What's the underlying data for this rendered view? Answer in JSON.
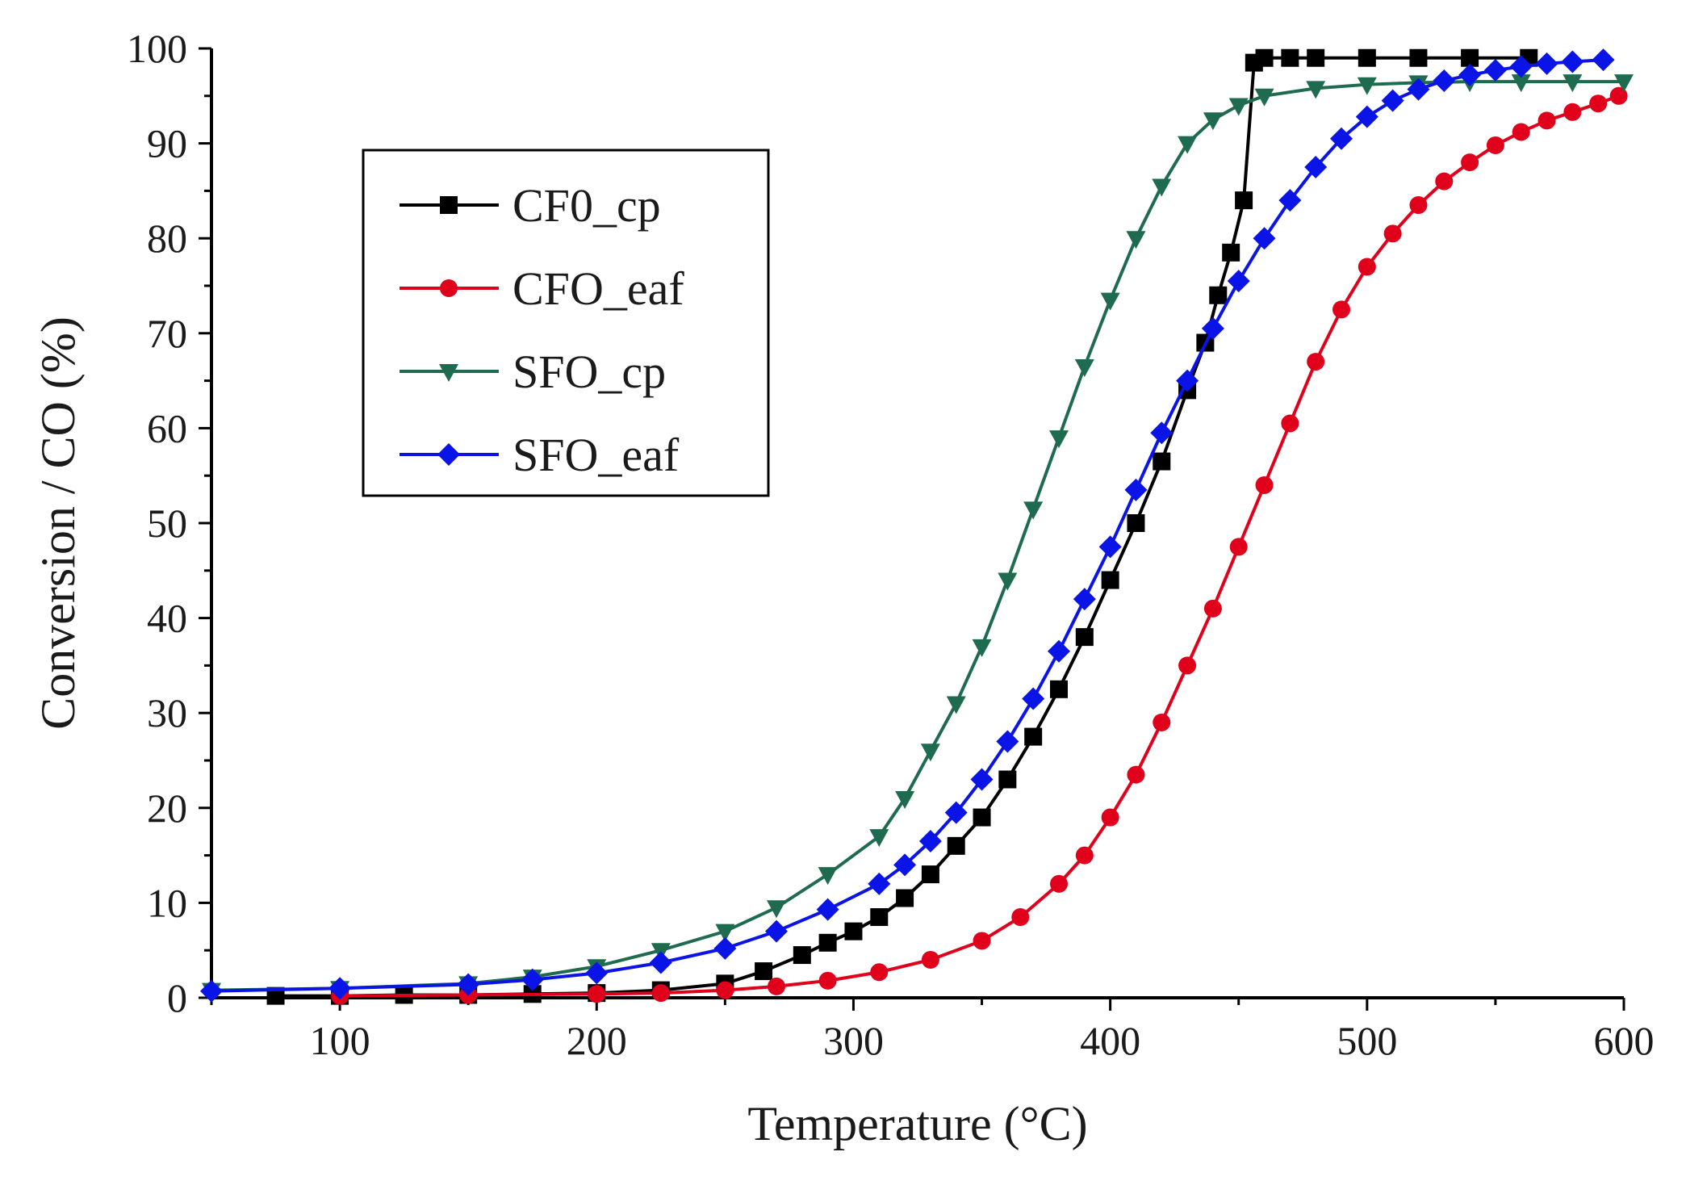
{
  "chart_data": {
    "type": "line",
    "title": "",
    "xlabel": "Temperature (°C)",
    "ylabel": "Conversion / CO (%)",
    "xlim": [
      50,
      600
    ],
    "ylim": [
      0,
      100
    ],
    "x_ticks": [
      100,
      200,
      300,
      400,
      500,
      600
    ],
    "y_ticks": [
      0,
      10,
      20,
      30,
      40,
      50,
      60,
      70,
      80,
      90,
      100
    ],
    "grid": false,
    "legend_position": "upper-left",
    "series": [
      {
        "name": "CF0_cp",
        "color": "#000000",
        "marker": "square",
        "x": [
          75,
          100,
          125,
          150,
          175,
          200,
          225,
          250,
          265,
          280,
          290,
          300,
          310,
          320,
          330,
          340,
          350,
          360,
          370,
          380,
          390,
          400,
          410,
          420,
          430,
          437,
          442,
          447,
          452,
          456,
          460,
          470,
          480,
          500,
          520,
          540,
          563
        ],
        "y": [
          0.2,
          0.2,
          0.3,
          0.3,
          0.4,
          0.5,
          0.8,
          1.5,
          2.8,
          4.5,
          5.8,
          7.0,
          8.5,
          10.5,
          13.0,
          16.0,
          19.0,
          23.0,
          27.5,
          32.5,
          38.0,
          44.0,
          50.0,
          56.5,
          64.0,
          69.0,
          74.0,
          78.5,
          84.0,
          98.5,
          99.0,
          99.0,
          99.0,
          99.0,
          99.0,
          99.0,
          99.0
        ]
      },
      {
        "name": "CFO_eaf",
        "color": "#e0001b",
        "marker": "circle",
        "x": [
          100,
          150,
          200,
          225,
          250,
          270,
          290,
          310,
          330,
          350,
          365,
          380,
          390,
          400,
          410,
          420,
          430,
          440,
          450,
          460,
          470,
          480,
          490,
          500,
          510,
          520,
          530,
          540,
          550,
          560,
          570,
          580,
          590,
          598
        ],
        "y": [
          0.2,
          0.3,
          0.4,
          0.5,
          0.8,
          1.2,
          1.8,
          2.7,
          4.0,
          6.0,
          8.5,
          12.0,
          15.0,
          19.0,
          23.5,
          29.0,
          35.0,
          41.0,
          47.5,
          54.0,
          60.5,
          67.0,
          72.5,
          77.0,
          80.5,
          83.5,
          86.0,
          88.0,
          89.8,
          91.2,
          92.4,
          93.3,
          94.2,
          95.0
        ]
      },
      {
        "name": "SFO_cp",
        "color": "#1f6b4f",
        "marker": "triangle-down",
        "x": [
          50,
          100,
          150,
          175,
          200,
          225,
          250,
          270,
          290,
          310,
          320,
          330,
          340,
          350,
          360,
          370,
          380,
          390,
          400,
          410,
          420,
          430,
          440,
          450,
          460,
          480,
          500,
          520,
          540,
          560,
          580,
          600
        ],
        "y": [
          0.8,
          1.0,
          1.5,
          2.2,
          3.3,
          5.0,
          7.0,
          9.5,
          13.0,
          17.0,
          21.0,
          26.0,
          31.0,
          37.0,
          44.0,
          51.5,
          59.0,
          66.5,
          73.5,
          80.0,
          85.5,
          90.0,
          92.5,
          94.0,
          95.0,
          95.8,
          96.2,
          96.4,
          96.5,
          96.5,
          96.5,
          96.5
        ]
      },
      {
        "name": "SFO_eaf",
        "color": "#0a14e6",
        "marker": "diamond",
        "x": [
          50,
          100,
          150,
          175,
          200,
          225,
          250,
          270,
          290,
          310,
          320,
          330,
          340,
          350,
          360,
          370,
          380,
          390,
          400,
          410,
          420,
          430,
          440,
          450,
          460,
          470,
          480,
          490,
          500,
          510,
          520,
          530,
          540,
          550,
          560,
          570,
          580,
          592
        ],
        "y": [
          0.7,
          1.0,
          1.4,
          1.9,
          2.6,
          3.7,
          5.2,
          7.0,
          9.3,
          12.0,
          14.0,
          16.5,
          19.5,
          23.0,
          27.0,
          31.5,
          36.5,
          42.0,
          47.5,
          53.5,
          59.5,
          65.0,
          70.5,
          75.5,
          80.0,
          84.0,
          87.5,
          90.5,
          92.8,
          94.5,
          95.7,
          96.6,
          97.2,
          97.7,
          98.1,
          98.4,
          98.6,
          98.8
        ]
      }
    ]
  }
}
